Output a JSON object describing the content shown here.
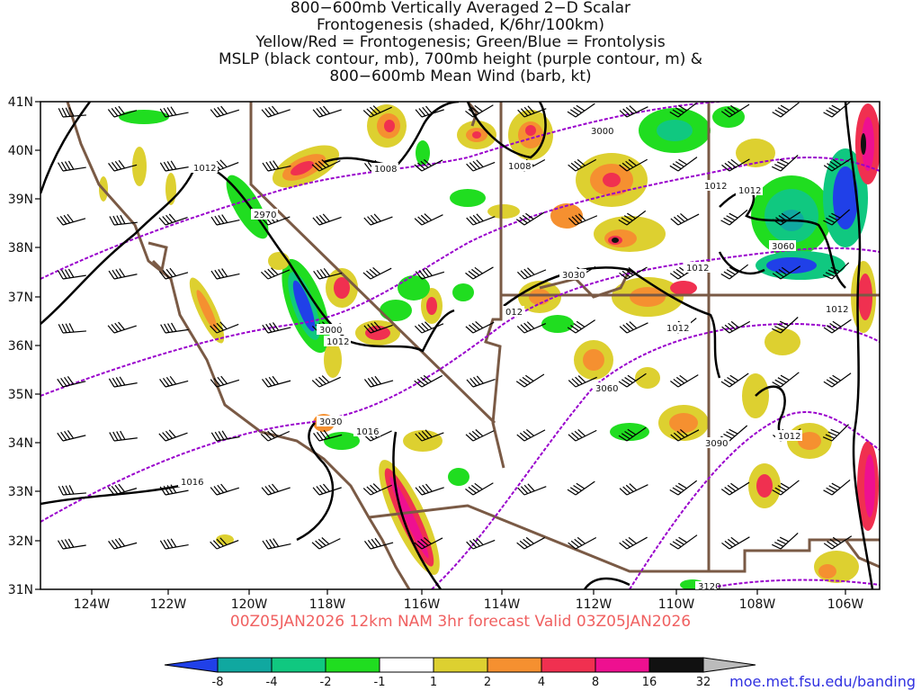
{
  "title": {
    "lines": [
      "800−600mb Vertically Averaged 2−D Scalar",
      "Frontogenesis (shaded, K/6hr/100km)",
      "Yellow/Red = Frontogenesis;  Green/Blue = Frontolysis",
      "MSLP (black contour, mb), 700mb height (purple contour, m) &",
      "800−600mb Mean Wind (barb, kt)"
    ]
  },
  "map": {
    "lat_labels": [
      "41N",
      "40N",
      "39N",
      "38N",
      "37N",
      "36N",
      "35N",
      "34N",
      "33N",
      "32N",
      "31N"
    ],
    "lon_labels": [
      "124W",
      "122W",
      "120W",
      "118W",
      "116W",
      "114W",
      "112W",
      "110W",
      "108W",
      "106W"
    ],
    "mslp_labels": [
      "1012",
      "1008",
      "1008",
      "1012",
      "1012",
      "1012",
      "1012",
      "1012",
      "1016",
      "1012",
      "1012",
      "1016",
      "012"
    ],
    "height_labels": [
      "2970",
      "3000",
      "3000",
      "3030",
      "3060",
      "3060",
      "3090",
      "3030",
      "3120"
    ],
    "colors": {
      "mslp": "#000000",
      "height": "#9900cc",
      "borders": "#7a5a45",
      "barbs": "#000000"
    }
  },
  "colorbar": {
    "labels": [
      "-8",
      "-4",
      "-2",
      "-1",
      "1",
      "2",
      "4",
      "8",
      "16",
      "32"
    ],
    "colors": [
      "#2040e8",
      "#10a8a0",
      "#10c880",
      "#20dd20",
      "#ffffff",
      "#ddd030",
      "#f59030",
      "#f03050",
      "#ee1090",
      "#111111",
      "#bbbbbb"
    ]
  },
  "footer": {
    "valid": "00Z05JAN2026 12km NAM 3hr forecast Valid 03Z05JAN2026",
    "credit": "moe.met.fsu.edu/banding"
  }
}
